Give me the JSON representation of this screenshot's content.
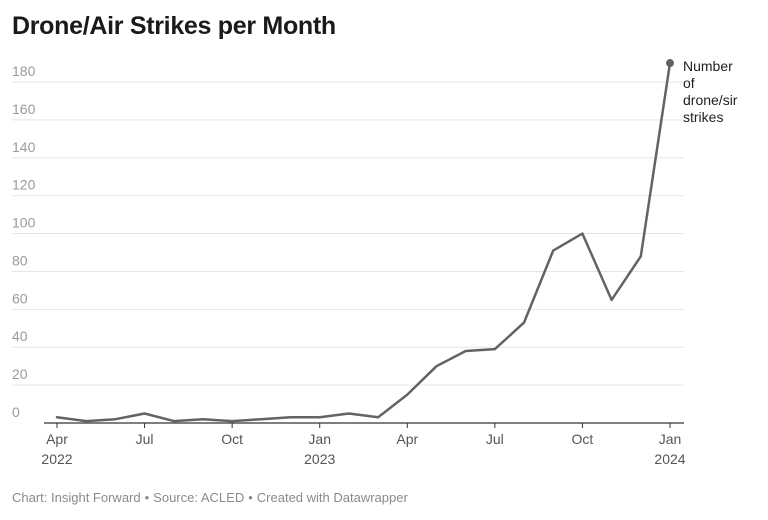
{
  "chart_data": {
    "type": "line",
    "title": "Drone/Air Strikes per Month",
    "xlabel": "",
    "ylabel": "",
    "ylim": [
      0,
      190
    ],
    "yticks": [
      0,
      20,
      40,
      60,
      80,
      100,
      120,
      140,
      160,
      180
    ],
    "grid": true,
    "x": [
      "2022-04",
      "2022-05",
      "2022-06",
      "2022-07",
      "2022-08",
      "2022-09",
      "2022-10",
      "2022-11",
      "2022-12",
      "2023-01",
      "2023-02",
      "2023-03",
      "2023-04",
      "2023-05",
      "2023-06",
      "2023-07",
      "2023-08",
      "2023-09",
      "2023-10",
      "2023-11",
      "2023-12",
      "2024-01"
    ],
    "xticks": [
      {
        "x": "2022-04",
        "label": "Apr",
        "year": "2022"
      },
      {
        "x": "2022-07",
        "label": "Jul",
        "year": ""
      },
      {
        "x": "2022-10",
        "label": "Oct",
        "year": ""
      },
      {
        "x": "2023-01",
        "label": "Jan",
        "year": "2023"
      },
      {
        "x": "2023-04",
        "label": "Apr",
        "year": ""
      },
      {
        "x": "2023-07",
        "label": "Jul",
        "year": ""
      },
      {
        "x": "2023-10",
        "label": "Oct",
        "year": ""
      },
      {
        "x": "2024-01",
        "label": "Jan",
        "year": "2024"
      }
    ],
    "series": [
      {
        "name": "Number of drone/sir strikes",
        "label_lines": [
          "Number",
          "of",
          "drone/sir",
          "strikes"
        ],
        "color": "#636363",
        "values": [
          3,
          1,
          2,
          5,
          1,
          2,
          1,
          2,
          3,
          3,
          5,
          3,
          15,
          30,
          38,
          39,
          53,
          91,
          100,
          65,
          88,
          190
        ]
      }
    ]
  },
  "footer": {
    "chart_by": "Chart: Insight Forward",
    "source": "Source: ACLED",
    "created": "Created with Datawrapper",
    "separator": "•"
  },
  "colors": {
    "line": "#636363",
    "grid": "#e5e5e5",
    "axis": "#333333",
    "tick_text": "#9a9a9a",
    "x_tick_text": "#555555"
  }
}
